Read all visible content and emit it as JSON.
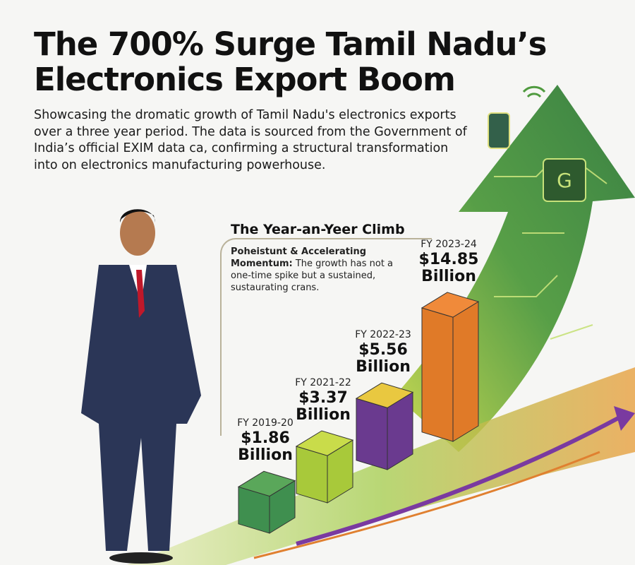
{
  "title_line1": "The 700% Surge  Tamil Nadu’s",
  "title_line2": "Electronics Export Boom",
  "subtitle": "Showcasing the dromatic growth of Tamil Nadu's electronics exports over a three year period. The data is sourced from the Government of India’s official EXIM data ca, confirming a structural transformation into on electronics manufacturing powerhouse.",
  "chart_title": "The Year-an-Yeer Climb",
  "callout_bold": "Poheistunt & Accelerating Momentum:",
  "callout_text": " The growth has not a one-time spike but a sustained, sustaurating crans.",
  "chart_data": {
    "type": "bar",
    "categories": [
      "FY 2019-20",
      "FY 2021-22",
      "FY 2022-23",
      "FY 2023-24"
    ],
    "values": [
      1.86,
      3.37,
      5.56,
      14.85
    ],
    "value_labels": [
      "$1.86",
      "$3.37",
      "$5.56",
      "$14.85"
    ],
    "unit": "Billion",
    "colors": [
      "#3f8f4f",
      "#a8c93a",
      "#6a3a8f",
      "#e07a28"
    ],
    "top_colors": [
      "#5aa75a",
      "#c9dc4a",
      "#e9c840",
      "#f08a3a"
    ]
  },
  "colors": {
    "arrow": "#4f9a3e",
    "accent_purple": "#7a3aa0",
    "accent_orange": "#e08030"
  }
}
